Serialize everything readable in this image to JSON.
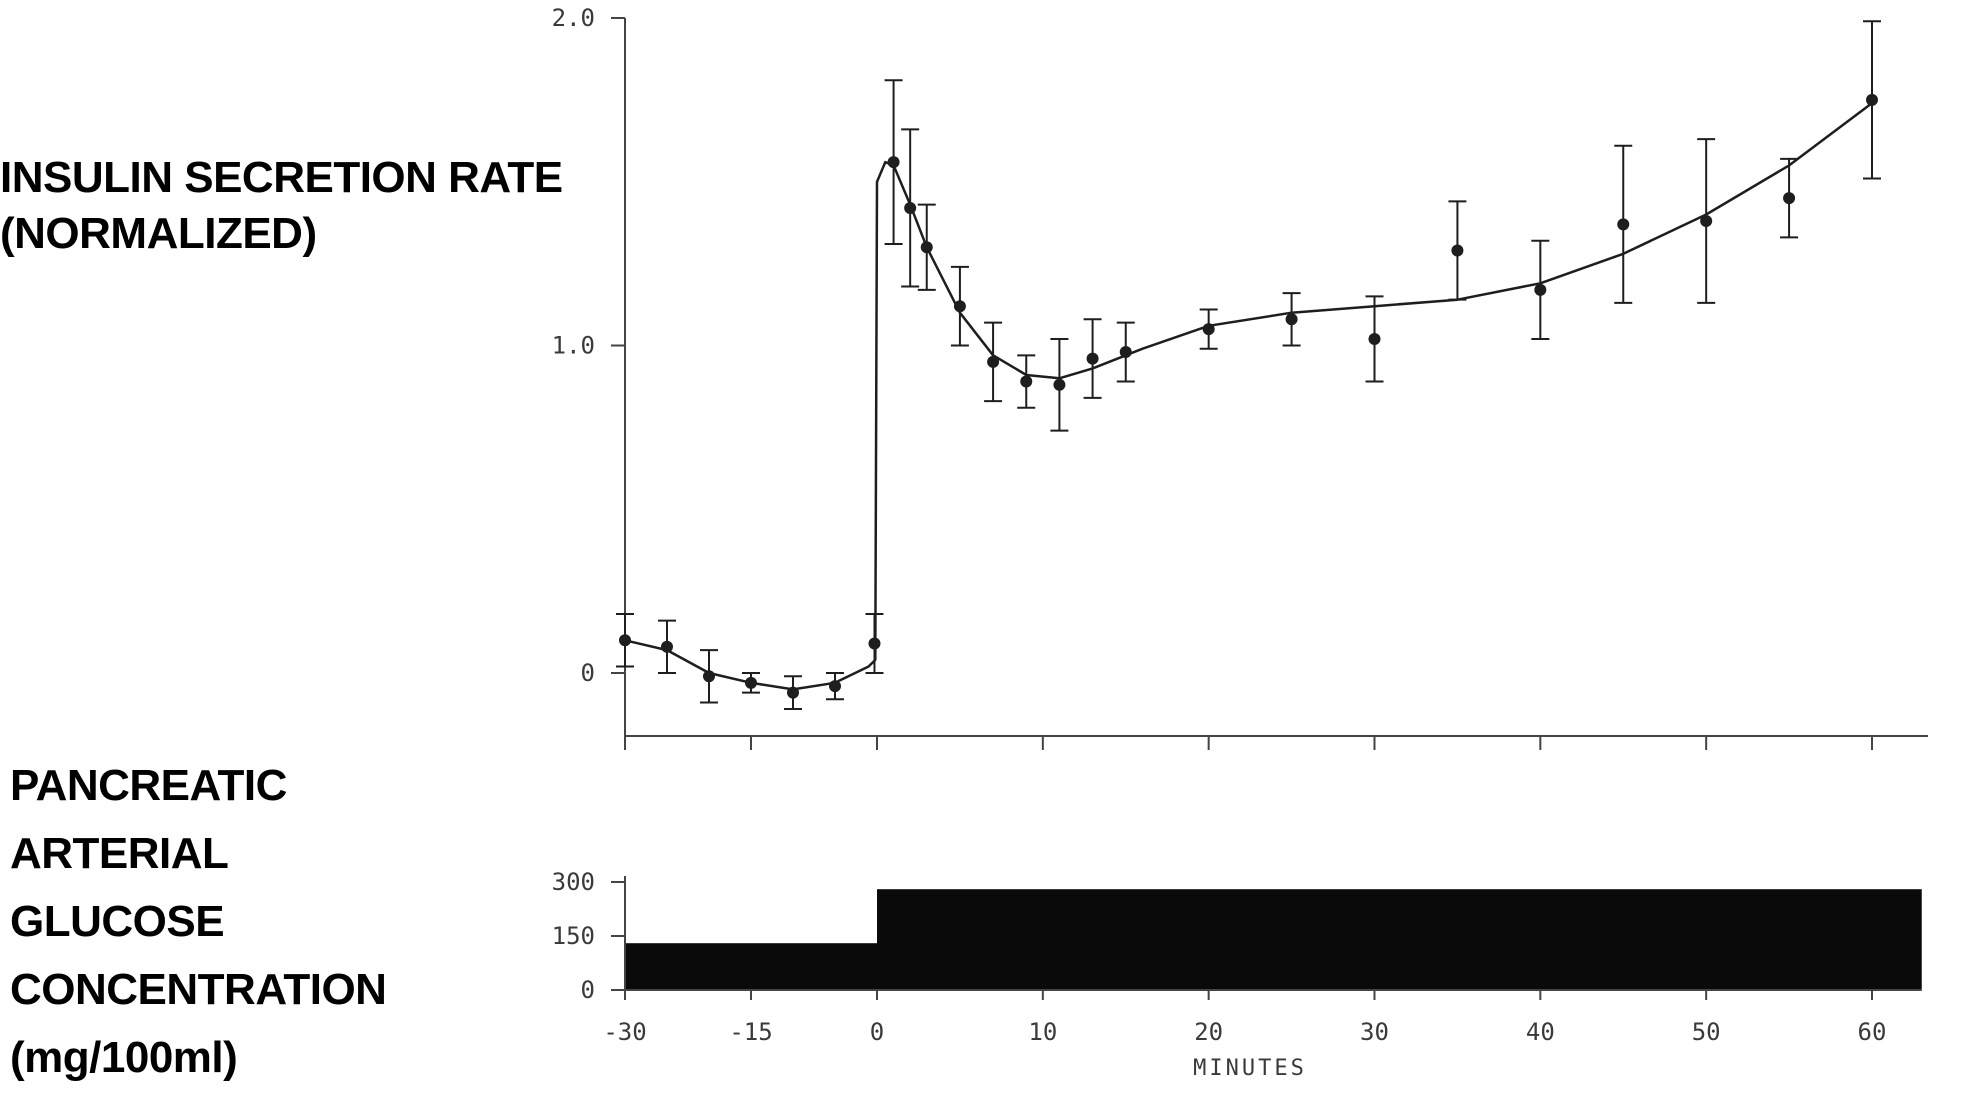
{
  "labels": {
    "top_ylabel_line1": "INSULIN SECRETION RATE",
    "top_ylabel_line2": "(NORMALIZED)",
    "bottom_ylabel_line1": "PANCREATIC",
    "bottom_ylabel_line2": "ARTERIAL",
    "bottom_ylabel_line3": "GLUCOSE",
    "bottom_ylabel_line4": "CONCENTRATION",
    "bottom_ylabel_line5": "(mg/100ml)",
    "xlabel": "MINUTES"
  },
  "colors": {
    "ink": "#1e1e1e",
    "bar_fill": "#0a0a0a",
    "axis": "#444444"
  },
  "chart_data": [
    {
      "type": "scatter",
      "title": "",
      "ylabel": "INSULIN SECRETION RATE (NORMALIZED)",
      "xlabel": "MINUTES",
      "ylim": [
        -0.2,
        2.0
      ],
      "y_ticks": [
        {
          "value": 0,
          "label": "0"
        },
        {
          "value": 1.0,
          "label": "1.0"
        },
        {
          "value": 2.0,
          "label": "2.0"
        }
      ],
      "x_ticks": [
        -30,
        -15,
        0,
        10,
        20,
        30,
        40,
        50,
        60
      ],
      "error_bars": true,
      "fitted_curve": true,
      "points": [
        {
          "x": -30,
          "y": 0.1,
          "err": 0.08
        },
        {
          "x": -25,
          "y": 0.08,
          "err": 0.08
        },
        {
          "x": -20,
          "y": -0.01,
          "err": 0.08
        },
        {
          "x": -15,
          "y": -0.03,
          "err": 0.03
        },
        {
          "x": -10,
          "y": -0.06,
          "err": 0.05
        },
        {
          "x": -5,
          "y": -0.04,
          "err": 0.04
        },
        {
          "x": -0.3,
          "y": 0.09,
          "err": 0.09
        },
        {
          "x": 1,
          "y": 1.56,
          "err": 0.25
        },
        {
          "x": 2,
          "y": 1.42,
          "err": 0.24
        },
        {
          "x": 3,
          "y": 1.3,
          "err": 0.13
        },
        {
          "x": 5,
          "y": 1.12,
          "err": 0.12
        },
        {
          "x": 7,
          "y": 0.95,
          "err": 0.12
        },
        {
          "x": 9,
          "y": 0.89,
          "err": 0.08
        },
        {
          "x": 11,
          "y": 0.88,
          "err": 0.14
        },
        {
          "x": 13,
          "y": 0.96,
          "err": 0.12
        },
        {
          "x": 15,
          "y": 0.98,
          "err": 0.09
        },
        {
          "x": 20,
          "y": 1.05,
          "err": 0.06
        },
        {
          "x": 25,
          "y": 1.08,
          "err": 0.08
        },
        {
          "x": 30,
          "y": 1.02,
          "err": 0.13
        },
        {
          "x": 35,
          "y": 1.29,
          "err": 0.15
        },
        {
          "x": 40,
          "y": 1.17,
          "err": 0.15
        },
        {
          "x": 45,
          "y": 1.37,
          "err": 0.24
        },
        {
          "x": 50,
          "y": 1.38,
          "err": 0.25
        },
        {
          "x": 55,
          "y": 1.45,
          "err": 0.12
        },
        {
          "x": 60,
          "y": 1.75,
          "err": 0.24
        }
      ],
      "curve": [
        {
          "x": -30,
          "y": 0.1
        },
        {
          "x": -25,
          "y": 0.07
        },
        {
          "x": -20,
          "y": 0.0
        },
        {
          "x": -15,
          "y": -0.03
        },
        {
          "x": -10,
          "y": -0.05
        },
        {
          "x": -5,
          "y": -0.03
        },
        {
          "x": -1,
          "y": 0.02
        },
        {
          "x": -0.2,
          "y": 0.04
        },
        {
          "x": 0,
          "y": 1.5
        },
        {
          "x": 0.5,
          "y": 1.56
        },
        {
          "x": 1,
          "y": 1.55
        },
        {
          "x": 2,
          "y": 1.43
        },
        {
          "x": 3,
          "y": 1.3
        },
        {
          "x": 5,
          "y": 1.1
        },
        {
          "x": 7,
          "y": 0.97
        },
        {
          "x": 9,
          "y": 0.91
        },
        {
          "x": 11,
          "y": 0.9
        },
        {
          "x": 13,
          "y": 0.93
        },
        {
          "x": 16,
          "y": 0.99
        },
        {
          "x": 20,
          "y": 1.06
        },
        {
          "x": 25,
          "y": 1.1
        },
        {
          "x": 30,
          "y": 1.12
        },
        {
          "x": 35,
          "y": 1.14
        },
        {
          "x": 40,
          "y": 1.19
        },
        {
          "x": 45,
          "y": 1.28
        },
        {
          "x": 50,
          "y": 1.4
        },
        {
          "x": 55,
          "y": 1.55
        },
        {
          "x": 60,
          "y": 1.74
        }
      ]
    },
    {
      "type": "area",
      "title": "",
      "ylabel": "PANCREATIC ARTERIAL GLUCOSE CONCENTRATION (mg/100ml)",
      "xlabel": "MINUTES",
      "ylim": [
        0,
        300
      ],
      "y_ticks": [
        0,
        150,
        300
      ],
      "x_ticks": [
        -30,
        -15,
        0,
        10,
        20,
        30,
        40,
        50,
        60
      ],
      "segments": [
        {
          "x_start": -30,
          "x_end": 0,
          "value": 130
        },
        {
          "x_start": 0,
          "x_end": 63,
          "value": 280
        }
      ]
    }
  ]
}
